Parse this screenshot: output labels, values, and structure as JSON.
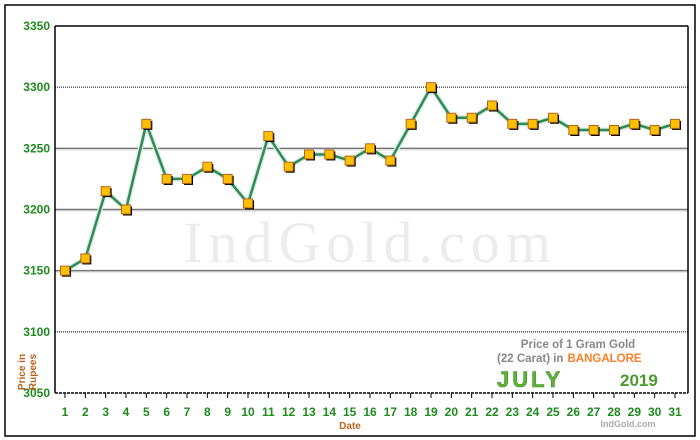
{
  "chart_data": {
    "type": "line",
    "xlabel": "Date",
    "ylabel": "Price in Rupees",
    "x": [
      1,
      2,
      3,
      4,
      5,
      6,
      7,
      8,
      9,
      10,
      11,
      12,
      13,
      14,
      15,
      16,
      17,
      18,
      19,
      20,
      21,
      22,
      23,
      24,
      25,
      26,
      27,
      28,
      29,
      30,
      31
    ],
    "values": [
      3150,
      3160,
      3215,
      3200,
      3270,
      3225,
      3225,
      3235,
      3225,
      3205,
      3260,
      3235,
      3245,
      3245,
      3240,
      3250,
      3240,
      3270,
      3300,
      3275,
      3275,
      3285,
      3270,
      3270,
      3275,
      3265,
      3265,
      3265,
      3270,
      3265,
      3270
    ],
    "ylim": [
      3050,
      3350
    ],
    "yticks": [
      3050,
      3100,
      3150,
      3200,
      3250,
      3300,
      3350
    ],
    "grid": true,
    "colors": {
      "line": "#2e8b57",
      "marker": "#ffc000",
      "marker_edge": "#b5651d",
      "tick": "#1f8a1f",
      "axis_label": "#b5651d"
    },
    "legend_box": {
      "line1": "Price of 1 Gram Gold",
      "line2_prefix": "(22 Carat) in",
      "city": "BANGALORE",
      "month": "JULY",
      "year": "2019"
    },
    "watermark": "IndGold.com",
    "credit": "IndGold.com"
  }
}
